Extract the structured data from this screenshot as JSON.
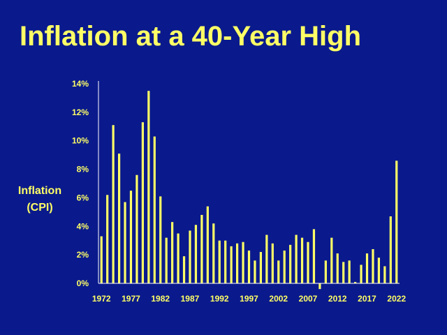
{
  "slide": {
    "title": "Inflation at a 40-Year High",
    "ylabel_line1": "Inflation",
    "ylabel_line2": "(CPI)"
  },
  "chart_data": {
    "type": "bar",
    "title": "Inflation at a 40-Year High",
    "xlabel": "",
    "ylabel": "Inflation (CPI)",
    "ylim": [
      0,
      14
    ],
    "y_ticks": [
      "0%",
      "2%",
      "4%",
      "6%",
      "8%",
      "10%",
      "12%",
      "14%"
    ],
    "x_tick_labels": [
      "1972",
      "1977",
      "1982",
      "1987",
      "1992",
      "1997",
      "2002",
      "2007",
      "2012",
      "2017",
      "2022"
    ],
    "categories": [
      1972,
      1973,
      1974,
      1975,
      1976,
      1977,
      1978,
      1979,
      1980,
      1981,
      1982,
      1983,
      1984,
      1985,
      1986,
      1987,
      1988,
      1989,
      1990,
      1991,
      1992,
      1993,
      1994,
      1995,
      1996,
      1997,
      1998,
      1999,
      2000,
      2001,
      2002,
      2003,
      2004,
      2005,
      2006,
      2007,
      2008,
      2009,
      2010,
      2011,
      2012,
      2013,
      2014,
      2015,
      2016,
      2017,
      2018,
      2019,
      2020,
      2021,
      2022
    ],
    "values": [
      3.3,
      6.2,
      11.1,
      9.1,
      5.7,
      6.5,
      7.6,
      11.3,
      13.5,
      10.3,
      6.1,
      3.2,
      4.3,
      3.5,
      1.9,
      3.7,
      4.1,
      4.8,
      5.4,
      4.2,
      3.0,
      3.0,
      2.6,
      2.8,
      2.9,
      2.3,
      1.6,
      2.2,
      3.4,
      2.8,
      1.6,
      2.3,
      2.7,
      3.4,
      3.2,
      2.9,
      3.8,
      -0.4,
      1.6,
      3.2,
      2.1,
      1.5,
      1.6,
      0.1,
      1.3,
      2.1,
      2.4,
      1.8,
      1.2,
      4.7,
      8.6
    ],
    "bar_color": "#ffff66",
    "background_color": "#0a1a8c",
    "grid": false
  }
}
